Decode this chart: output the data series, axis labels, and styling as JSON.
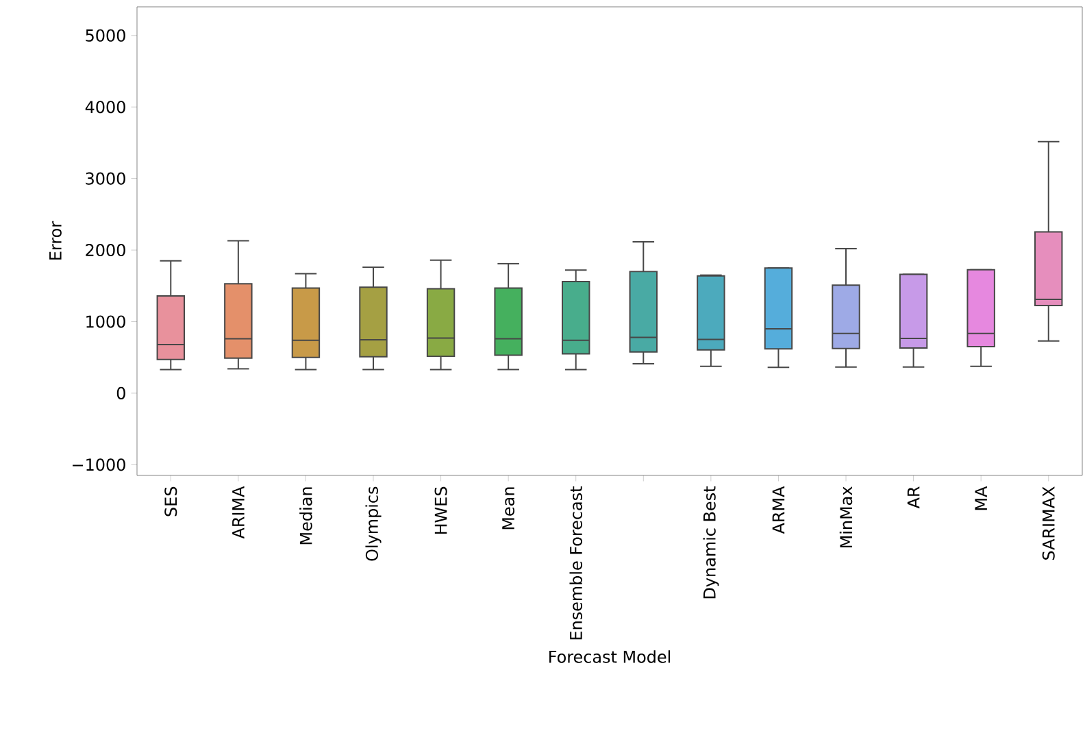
{
  "chart_data": {
    "type": "box",
    "xlabel": "Forecast Model",
    "ylabel": "Error",
    "categories": [
      "SES",
      "ARIMA",
      "Median",
      "Olympics",
      "HWES",
      "Mean",
      "Ensemble Forecast",
      null,
      "Dynamic Best",
      "ARMA",
      "MinMax",
      "AR",
      "MA",
      "SARIMAX"
    ],
    "colors": [
      "#e8919c",
      "#e4906a",
      "#c89a48",
      "#a5a043",
      "#89aa44",
      "#45b05e",
      "#48ad8c",
      "#49aaa4",
      "#4caabd",
      "#55addb",
      "#9eaae6",
      "#c79ae8",
      "#e688df",
      "#e68ebd"
    ],
    "boxes": [
      {
        "low": 330,
        "q1": 470,
        "median": 680,
        "q3": 1360,
        "high": 1850
      },
      {
        "low": 340,
        "q1": 490,
        "median": 760,
        "q3": 1530,
        "high": 2130
      },
      {
        "low": 330,
        "q1": 500,
        "median": 740,
        "q3": 1470,
        "high": 1670
      },
      {
        "low": 330,
        "q1": 510,
        "median": 745,
        "q3": 1480,
        "high": 1760
      },
      {
        "low": 330,
        "q1": 515,
        "median": 770,
        "q3": 1460,
        "high": 1860
      },
      {
        "low": 330,
        "q1": 530,
        "median": 760,
        "q3": 1470,
        "high": 1810
      },
      {
        "low": 330,
        "q1": 550,
        "median": 740,
        "q3": 1560,
        "high": 1720
      },
      {
        "low": 410,
        "q1": 575,
        "median": 780,
        "q3": 1700,
        "high": 2115
      },
      {
        "low": 375,
        "q1": 605,
        "median": 750,
        "q3": 1640,
        "high": 1650
      },
      {
        "low": 360,
        "q1": 620,
        "median": 900,
        "q3": 1750,
        "high": 1750
      },
      {
        "low": 365,
        "q1": 625,
        "median": 835,
        "q3": 1510,
        "high": 2020
      },
      {
        "low": 365,
        "q1": 630,
        "median": 765,
        "q3": 1660,
        "high": 1660
      },
      {
        "low": 375,
        "q1": 650,
        "median": 835,
        "q3": 1725,
        "high": 1725
      },
      {
        "low": 730,
        "q1": 1225,
        "median": 1310,
        "q3": 2255,
        "high": 3515
      }
    ],
    "ylim": [
      -1150,
      5400
    ],
    "yticks": [
      {
        "value": -1000,
        "label": "−1000"
      },
      0,
      1000,
      2000,
      3000,
      4000,
      5000
    ]
  }
}
